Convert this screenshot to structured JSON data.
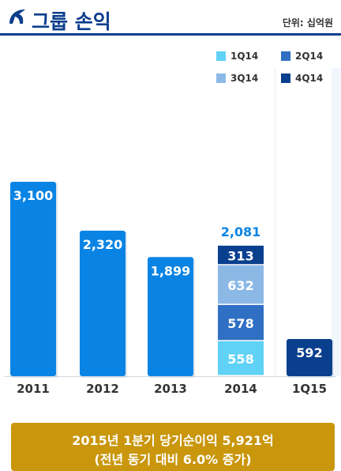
{
  "header": {
    "title": "그룹 손익",
    "unit": "단위: 십억원"
  },
  "colors": {
    "brand": "#0b3e8c",
    "annual_bar": "#0a84e4",
    "q1": "#5fd2f5",
    "q2": "#2f6fc4",
    "q3": "#8cb8e6",
    "q4": "#0a3f8e",
    "note_bg": "#c9960c"
  },
  "chart_data": {
    "type": "bar",
    "categories": [
      "2011",
      "2012",
      "2013",
      "2014",
      "1Q15"
    ],
    "values": [
      3100,
      2320,
      1899,
      2081,
      592
    ],
    "value_labels": [
      "3,100",
      "2,320",
      "1,899",
      "2,081",
      "592"
    ],
    "stacked_2014": {
      "category": "2014",
      "series": [
        {
          "name": "1Q14",
          "value": 558,
          "label": "558"
        },
        {
          "name": "2Q14",
          "value": 578,
          "label": "578"
        },
        {
          "name": "3Q14",
          "value": 632,
          "label": "632"
        },
        {
          "name": "4Q14",
          "value": 313,
          "label": "313"
        }
      ]
    },
    "legend": [
      "1Q14",
      "2Q14",
      "3Q14",
      "4Q14"
    ],
    "legend_placement": "top-right",
    "grid": false
  },
  "note": {
    "line1": "2015년 1분기 당기순이익 5,921억",
    "line2": "(전년 동기 대비 6.0% 증가)"
  }
}
